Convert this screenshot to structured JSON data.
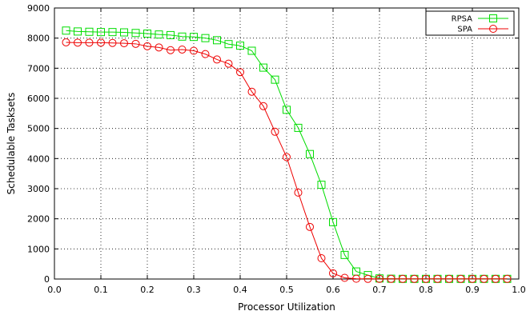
{
  "chart_data": {
    "type": "line",
    "xlabel": "Processor Utilization",
    "ylabel": "Schedulable Tasksets",
    "xlim": [
      0,
      1.0
    ],
    "ylim": [
      0,
      9000
    ],
    "x_ticks": [
      "0.0",
      "0.1",
      "0.2",
      "0.3",
      "0.4",
      "0.5",
      "0.6",
      "0.7",
      "0.8",
      "0.9",
      "1.0"
    ],
    "y_ticks": [
      "0",
      "1000",
      "2000",
      "3000",
      "4000",
      "5000",
      "6000",
      "7000",
      "8000",
      "9000"
    ],
    "grid": true,
    "legend_position": "top-right",
    "x": [
      0.025,
      0.05,
      0.075,
      0.1,
      0.125,
      0.15,
      0.175,
      0.2,
      0.225,
      0.25,
      0.275,
      0.3,
      0.325,
      0.35,
      0.375,
      0.4,
      0.425,
      0.45,
      0.475,
      0.5,
      0.525,
      0.55,
      0.575,
      0.6,
      0.625,
      0.65,
      0.675,
      0.7,
      0.725,
      0.75,
      0.775,
      0.8,
      0.825,
      0.85,
      0.875,
      0.9,
      0.925,
      0.95,
      0.975
    ],
    "series": [
      {
        "name": "RPSA",
        "color": "#00dd00",
        "marker": "square",
        "values": [
          8250,
          8220,
          8210,
          8200,
          8200,
          8190,
          8170,
          8150,
          8120,
          8100,
          8050,
          8040,
          8000,
          7930,
          7800,
          7750,
          7580,
          7020,
          6620,
          5620,
          5020,
          4150,
          3130,
          1890,
          800,
          250,
          130,
          20,
          10,
          5,
          5,
          5,
          5,
          5,
          5,
          5,
          5,
          5,
          5
        ]
      },
      {
        "name": "SPA",
        "color": "#ee0000",
        "marker": "circle",
        "values": [
          7860,
          7850,
          7850,
          7850,
          7840,
          7830,
          7810,
          7730,
          7690,
          7600,
          7620,
          7580,
          7470,
          7290,
          7150,
          6870,
          6220,
          5740,
          4890,
          4050,
          2870,
          1730,
          690,
          190,
          40,
          10,
          5,
          5,
          5,
          5,
          5,
          5,
          5,
          5,
          5,
          5,
          5,
          5,
          5
        ]
      }
    ]
  }
}
